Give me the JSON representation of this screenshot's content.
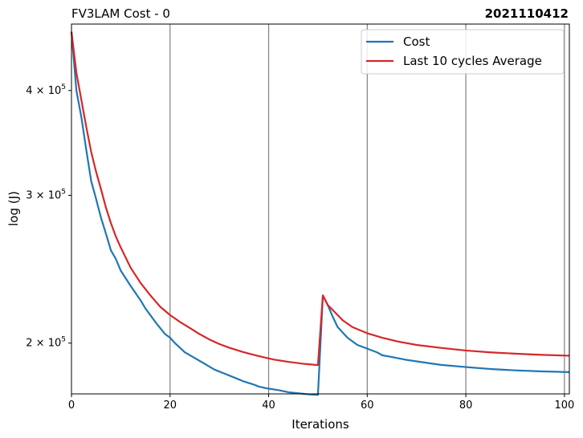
{
  "chart_data": {
    "type": "line",
    "title": "FV3LAM Cost - 0",
    "title_right": "2021110412",
    "xlabel": "Iterations",
    "ylabel": "log (J)",
    "xlim": [
      0,
      101
    ],
    "ylim": [
      174000,
      480000
    ],
    "yscale": "log",
    "x_ticks": [
      0,
      20,
      40,
      60,
      80,
      100
    ],
    "x_tick_labels": [
      "0",
      "20",
      "40",
      "60",
      "80",
      "100"
    ],
    "y_ticks": [
      200000,
      300000,
      400000
    ],
    "y_tick_labels": [
      {
        "mant": "2",
        "exp": "5"
      },
      {
        "mant": "3",
        "exp": "5"
      },
      {
        "mant": "4",
        "exp": "5"
      }
    ],
    "y_tick_label_base": "× 10",
    "vlines": [
      20,
      40,
      60,
      80,
      100
    ],
    "grid": false,
    "legend_position": "top-right",
    "series": [
      {
        "name": "Cost",
        "color": "#1f77b4",
        "points": [
          [
            0,
            470000
          ],
          [
            1,
            400000
          ],
          [
            2,
            372000
          ],
          [
            3,
            340000
          ],
          [
            4,
            312000
          ],
          [
            5,
            297000
          ],
          [
            6,
            282000
          ],
          [
            7,
            270000
          ],
          [
            8,
            258000
          ],
          [
            9,
            252000
          ],
          [
            10,
            244000
          ],
          [
            12,
            234000
          ],
          [
            14,
            225000
          ],
          [
            15,
            220000
          ],
          [
            17,
            212000
          ],
          [
            19,
            205000
          ],
          [
            20,
            203000
          ],
          [
            21,
            200000
          ],
          [
            23,
            195000
          ],
          [
            25,
            192000
          ],
          [
            27,
            189000
          ],
          [
            29,
            186000
          ],
          [
            31,
            184000
          ],
          [
            33,
            182000
          ],
          [
            35,
            180000
          ],
          [
            37,
            178500
          ],
          [
            38,
            177500
          ],
          [
            40,
            176500
          ],
          [
            42,
            175800
          ],
          [
            44,
            174800
          ],
          [
            46,
            174300
          ],
          [
            48,
            173800
          ],
          [
            50,
            173500
          ],
          [
            51,
            228000
          ],
          [
            52,
            222000
          ],
          [
            53,
            215000
          ],
          [
            54,
            209000
          ],
          [
            56,
            203000
          ],
          [
            58,
            199000
          ],
          [
            60,
            197000
          ],
          [
            62,
            195000
          ],
          [
            63,
            193500
          ],
          [
            65,
            192500
          ],
          [
            68,
            191000
          ],
          [
            72,
            189500
          ],
          [
            75,
            188400
          ],
          [
            80,
            187300
          ],
          [
            85,
            186300
          ],
          [
            90,
            185600
          ],
          [
            95,
            185100
          ],
          [
            101,
            184700
          ]
        ]
      },
      {
        "name": "Last 10 cycles Average",
        "color": "#d62728",
        "points": [
          [
            0,
            470000
          ],
          [
            1,
            420000
          ],
          [
            2,
            390000
          ],
          [
            3,
            362000
          ],
          [
            4,
            338000
          ],
          [
            5,
            320000
          ],
          [
            6,
            305000
          ],
          [
            7,
            290000
          ],
          [
            8,
            278000
          ],
          [
            9,
            268000
          ],
          [
            10,
            260000
          ],
          [
            12,
            246000
          ],
          [
            14,
            236000
          ],
          [
            16,
            228000
          ],
          [
            18,
            221000
          ],
          [
            20,
            216000
          ],
          [
            22,
            212000
          ],
          [
            24,
            208500
          ],
          [
            26,
            205000
          ],
          [
            28,
            202000
          ],
          [
            30,
            199500
          ],
          [
            32,
            197500
          ],
          [
            35,
            195000
          ],
          [
            38,
            193000
          ],
          [
            41,
            191200
          ],
          [
            44,
            190000
          ],
          [
            47,
            189000
          ],
          [
            50,
            188300
          ],
          [
            51,
            228000
          ],
          [
            52,
            222000
          ],
          [
            53,
            219000
          ],
          [
            55,
            213000
          ],
          [
            57,
            209000
          ],
          [
            60,
            205500
          ],
          [
            63,
            203000
          ],
          [
            66,
            201000
          ],
          [
            70,
            199000
          ],
          [
            75,
            197400
          ],
          [
            80,
            196000
          ],
          [
            85,
            195000
          ],
          [
            90,
            194300
          ],
          [
            95,
            193700
          ],
          [
            101,
            193200
          ]
        ]
      }
    ]
  }
}
